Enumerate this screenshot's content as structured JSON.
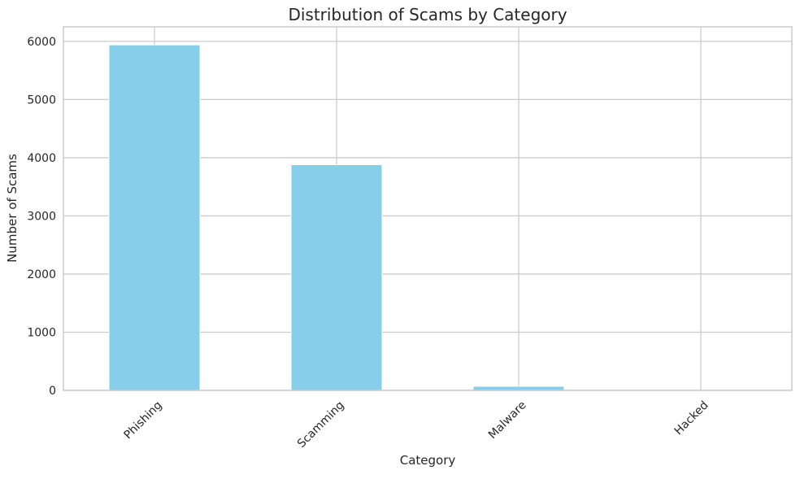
{
  "chart_data": {
    "type": "bar",
    "title": "Distribution of Scams by Category",
    "xlabel": "Category",
    "ylabel": "Number of Scams",
    "categories": [
      "Phishing",
      "Scamming",
      "Malware",
      "Hacked"
    ],
    "values": [
      5940,
      3880,
      70,
      2
    ],
    "ylim": [
      0,
      6250
    ],
    "yticks": [
      0,
      1000,
      2000,
      3000,
      4000,
      5000,
      6000
    ],
    "ytick_labels": [
      "0",
      "1000",
      "2000",
      "3000",
      "4000",
      "5000",
      "6000"
    ],
    "grid": true,
    "legend": "none",
    "x_tick_rotation_deg": 45,
    "colors": {
      "bar": "#87CEEB",
      "bar_edge": "#ffffff",
      "grid": "#cccccc",
      "axes_edge": "#cccccc",
      "text": "#262626",
      "background": "#ffffff"
    }
  }
}
